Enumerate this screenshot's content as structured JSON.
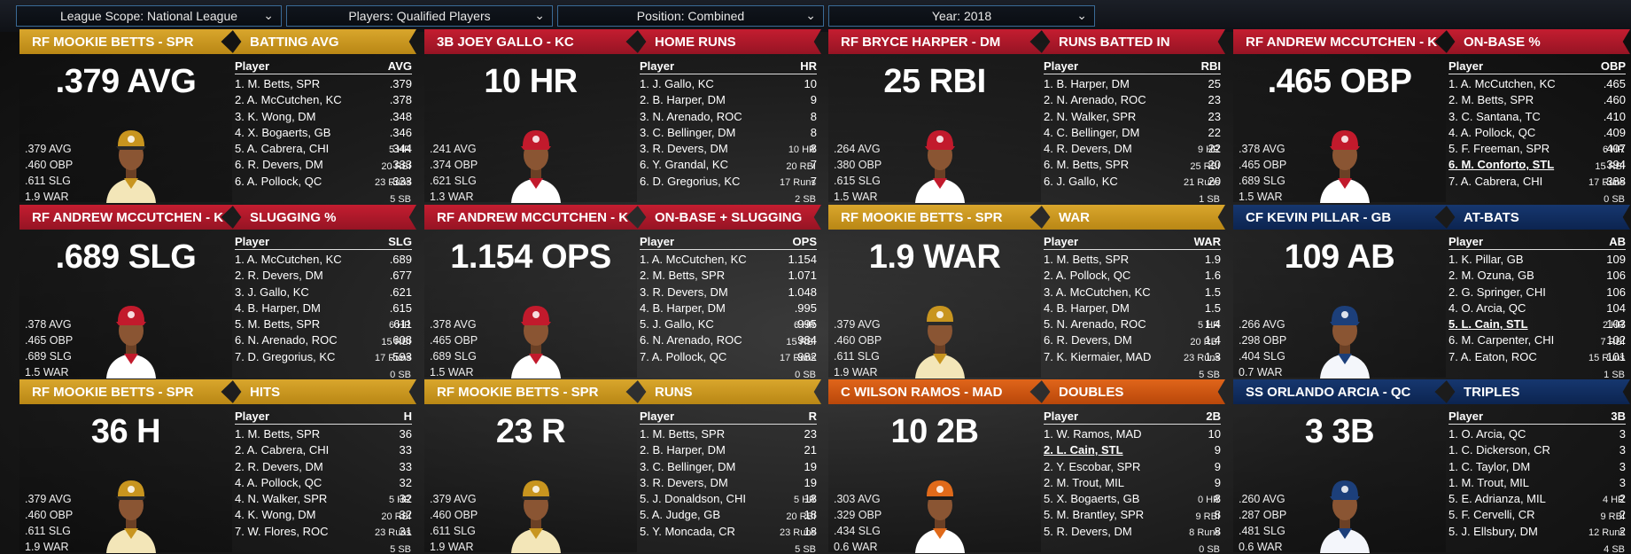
{
  "filters": [
    {
      "label": "League Scope: National League",
      "left": 0
    },
    {
      "label": "Players: Qualified Players",
      "left": 0
    },
    {
      "label": "Position: Combined",
      "left": 0
    },
    {
      "label": "Year: 2018",
      "left": 0
    }
  ],
  "colors": {
    "gold": "#c8951f",
    "red": "#b01a2a",
    "blue": "#0f2c5e",
    "orange": "#d4580f"
  },
  "cards": [
    {
      "player": "RF MOOKIE BETTS - SPR",
      "category": "BATTING AVG",
      "big": ".379 AVG",
      "color": "gold",
      "cap": "gold",
      "jersey": "gold",
      "stats": [
        ".379 AVG",
        ".460 OBP",
        ".611 SLG",
        "1.9 WAR"
      ],
      "side": [
        "5 HR",
        "20 RBI",
        "23 Runs",
        "5 SB"
      ],
      "col": "AVG",
      "rows": [
        [
          "1. M. Betts, SPR",
          ".379"
        ],
        [
          "2. A. McCutchen, KC",
          ".378"
        ],
        [
          "3. K. Wong, DM",
          ".348"
        ],
        [
          "4. X. Bogaerts, GB",
          ".346"
        ],
        [
          "5. A. Cabrera, CHI",
          ".344"
        ],
        [
          "6. R. Devers, DM",
          ".333"
        ],
        [
          "6. A. Pollock, QC",
          ".333"
        ]
      ],
      "hl": -1
    },
    {
      "player": "3B JOEY GALLO - KC",
      "category": "HOME RUNS",
      "big": "10 HR",
      "color": "red",
      "cap": "red",
      "jersey": "red",
      "stats": [
        ".241 AVG",
        ".374 OBP",
        ".621 SLG",
        "1.3 WAR"
      ],
      "side": [
        "10 HR",
        "20 RBI",
        "17 Runs",
        "2 SB"
      ],
      "col": "HR",
      "rows": [
        [
          "1. J. Gallo, KC",
          "10"
        ],
        [
          "2. B. Harper, DM",
          "9"
        ],
        [
          "3. N. Arenado, ROC",
          "8"
        ],
        [
          "3. C. Bellinger, DM",
          "8"
        ],
        [
          "3. R. Devers, DM",
          "8"
        ],
        [
          "6. Y. Grandal, KC",
          "7"
        ],
        [
          "6. D. Gregorius, KC",
          "7"
        ]
      ],
      "hl": -1
    },
    {
      "player": "RF BRYCE HARPER - DM",
      "category": "RUNS BATTED IN",
      "big": "25 RBI",
      "color": "red",
      "cap": "red",
      "jersey": "red",
      "stats": [
        ".264 AVG",
        ".380 OBP",
        ".615 SLG",
        "1.5 WAR"
      ],
      "side": [
        "9 HR",
        "25 RBI",
        "21 Runs",
        "1 SB"
      ],
      "col": "RBI",
      "rows": [
        [
          "1. B. Harper, DM",
          "25"
        ],
        [
          "2. N. Arenado, ROC",
          "23"
        ],
        [
          "2. N. Walker, SPR",
          "23"
        ],
        [
          "4. C. Bellinger, DM",
          "22"
        ],
        [
          "4. R. Devers, DM",
          "22"
        ],
        [
          "6. M. Betts, SPR",
          "20"
        ],
        [
          "6. J. Gallo, KC",
          "20"
        ]
      ],
      "hl": -1
    },
    {
      "player": "RF ANDREW MCCUTCHEN - KC",
      "category": "ON-BASE %",
      "big": ".465 OBP",
      "color": "red",
      "cap": "red",
      "jersey": "red",
      "stats": [
        ".378 AVG",
        ".465 OBP",
        ".689 SLG",
        "1.5 WAR"
      ],
      "side": [
        "6 HR",
        "15 RBI",
        "17 Runs",
        "0 SB"
      ],
      "col": "OBP",
      "rows": [
        [
          "1. A. McCutchen, KC",
          ".465"
        ],
        [
          "2. M. Betts, SPR",
          ".460"
        ],
        [
          "3. C. Santana, TC",
          ".410"
        ],
        [
          "4. A. Pollock, QC",
          ".409"
        ],
        [
          "5. F. Freeman, SPR",
          ".407"
        ],
        [
          "6. M. Conforto, STL",
          ".394"
        ],
        [
          "7. A. Cabrera, CHI",
          ".388"
        ]
      ],
      "hl": 5
    },
    {
      "player": "RF ANDREW MCCUTCHEN - KC",
      "category": "SLUGGING %",
      "big": ".689 SLG",
      "color": "red",
      "cap": "red",
      "jersey": "red",
      "stats": [
        ".378 AVG",
        ".465 OBP",
        ".689 SLG",
        "1.5 WAR"
      ],
      "side": [
        "6 HR",
        "15 RBI",
        "17 Runs",
        "0 SB"
      ],
      "col": "SLG",
      "rows": [
        [
          "1. A. McCutchen, KC",
          ".689"
        ],
        [
          "2. R. Devers, DM",
          ".677"
        ],
        [
          "3. J. Gallo, KC",
          ".621"
        ],
        [
          "4. B. Harper, DM",
          ".615"
        ],
        [
          "5. M. Betts, SPR",
          ".611"
        ],
        [
          "6. N. Arenado, ROC",
          ".608"
        ],
        [
          "7. D. Gregorius, KC",
          ".593"
        ]
      ],
      "hl": -1
    },
    {
      "player": "RF ANDREW MCCUTCHEN - KC",
      "category": "ON-BASE + SLUGGING",
      "big": "1.154 OPS",
      "color": "red",
      "cap": "red",
      "jersey": "red",
      "stats": [
        ".378 AVG",
        ".465 OBP",
        ".689 SLG",
        "1.5 WAR"
      ],
      "side": [
        "6 HR",
        "15 RBI",
        "17 Runs",
        "0 SB"
      ],
      "col": "OPS",
      "rows": [
        [
          "1. A. McCutchen, KC",
          "1.154"
        ],
        [
          "2. M. Betts, SPR",
          "1.071"
        ],
        [
          "3. R. Devers, DM",
          "1.048"
        ],
        [
          "4. B. Harper, DM",
          ".995"
        ],
        [
          "5. J. Gallo, KC",
          ".995"
        ],
        [
          "6. N. Arenado, ROC",
          ".984"
        ],
        [
          "7. A. Pollock, QC",
          ".982"
        ]
      ],
      "hl": -1
    },
    {
      "player": "RF MOOKIE BETTS - SPR",
      "category": "WAR",
      "big": "1.9 WAR",
      "color": "gold",
      "cap": "gold",
      "jersey": "gold",
      "stats": [
        ".379 AVG",
        ".460 OBP",
        ".611 SLG",
        "1.9 WAR"
      ],
      "side": [
        "5 HR",
        "20 RBI",
        "23 Runs",
        "5 SB"
      ],
      "col": "WAR",
      "rows": [
        [
          "1. M. Betts, SPR",
          "1.9"
        ],
        [
          "2. A. Pollock, QC",
          "1.6"
        ],
        [
          "3. A. McCutchen, KC",
          "1.5"
        ],
        [
          "4. B. Harper, DM",
          "1.5"
        ],
        [
          "5. N. Arenado, ROC",
          "1.4"
        ],
        [
          "6. R. Devers, DM",
          "1.4"
        ],
        [
          "7. K. Kiermaier, MAD",
          "1.3"
        ]
      ],
      "hl": -1
    },
    {
      "player": "CF KEVIN PILLAR - GB",
      "category": "AT-BATS",
      "big": "109 AB",
      "color": "blue",
      "cap": "blue",
      "jersey": "blue",
      "stats": [
        ".266 AVG",
        ".298 OBP",
        ".404 SLG",
        "0.7 WAR"
      ],
      "side": [
        "2 HR",
        "7 RBI",
        "15 Runs",
        "1 SB"
      ],
      "col": "AB",
      "rows": [
        [
          "1. K. Pillar, GB",
          "109"
        ],
        [
          "2. M. Ozuna, GB",
          "106"
        ],
        [
          "2. G. Springer, CHI",
          "106"
        ],
        [
          "4. O. Arcia, QC",
          "104"
        ],
        [
          "5. L. Cain, STL",
          "103"
        ],
        [
          "6. M. Carpenter, CHI",
          "102"
        ],
        [
          "7. A. Eaton, ROC",
          "101"
        ]
      ],
      "hl": 4
    },
    {
      "player": "RF MOOKIE BETTS - SPR",
      "category": "HITS",
      "big": "36 H",
      "color": "gold",
      "cap": "gold",
      "jersey": "gold",
      "stats": [
        ".379 AVG",
        ".460 OBP",
        ".611 SLG",
        "1.9 WAR"
      ],
      "side": [
        "5 HR",
        "20 RBI",
        "23 Runs",
        "5 SB"
      ],
      "col": "H",
      "rows": [
        [
          "1. M. Betts, SPR",
          "36"
        ],
        [
          "2. A. Cabrera, CHI",
          "33"
        ],
        [
          "2. R. Devers, DM",
          "33"
        ],
        [
          "4. A. Pollock, QC",
          "32"
        ],
        [
          "4. N. Walker, SPR",
          "32"
        ],
        [
          "4. K. Wong, DM",
          "32"
        ],
        [
          "7. W. Flores, ROC",
          "31"
        ]
      ],
      "hl": -1
    },
    {
      "player": "RF MOOKIE BETTS - SPR",
      "category": "RUNS",
      "big": "23 R",
      "color": "gold",
      "cap": "gold",
      "jersey": "gold",
      "stats": [
        ".379 AVG",
        ".460 OBP",
        ".611 SLG",
        "1.9 WAR"
      ],
      "side": [
        "5 HR",
        "20 RBI",
        "23 Runs",
        "5 SB"
      ],
      "col": "R",
      "rows": [
        [
          "1. M. Betts, SPR",
          "23"
        ],
        [
          "2. B. Harper, DM",
          "21"
        ],
        [
          "3. C. Bellinger, DM",
          "19"
        ],
        [
          "3. R. Devers, DM",
          "19"
        ],
        [
          "5. J. Donaldson, CHI",
          "18"
        ],
        [
          "5. A. Judge, GB",
          "18"
        ],
        [
          "5. Y. Moncada, CR",
          "18"
        ]
      ],
      "hl": -1
    },
    {
      "player": "C WILSON RAMOS - MAD",
      "category": "DOUBLES",
      "big": "10 2B",
      "color": "orange",
      "cap": "orange",
      "jersey": "orange",
      "stats": [
        ".303 AVG",
        ".329 OBP",
        ".434 SLG",
        "0.6 WAR"
      ],
      "side": [
        "0 HR",
        "9 RBI",
        "8 Runs",
        "0 SB"
      ],
      "col": "2B",
      "rows": [
        [
          "1. W. Ramos, MAD",
          "10"
        ],
        [
          "2. L. Cain, STL",
          "9"
        ],
        [
          "2. Y. Escobar, SPR",
          "9"
        ],
        [
          "2. M. Trout, MIL",
          "9"
        ],
        [
          "5. X. Bogaerts, GB",
          "8"
        ],
        [
          "5. M. Brantley, SPR",
          "8"
        ],
        [
          "5. R. Devers, DM",
          "8"
        ]
      ],
      "hl": 1
    },
    {
      "player": "SS ORLANDO ARCIA - QC",
      "category": "TRIPLES",
      "big": "3 3B",
      "color": "blue",
      "cap": "blue",
      "jersey": "blue",
      "stats": [
        ".260 AVG",
        ".287 OBP",
        ".481 SLG",
        "0.6 WAR"
      ],
      "side": [
        "4 HR",
        "9 RBI",
        "12 Runs",
        "4 SB"
      ],
      "col": "3B",
      "rows": [
        [
          "1. O. Arcia, QC",
          "3"
        ],
        [
          "1. C. Dickerson, CR",
          "3"
        ],
        [
          "1. C. Taylor, DM",
          "3"
        ],
        [
          "1. M. Trout, MIL",
          "3"
        ],
        [
          "5. E. Adrianza, MIL",
          "2"
        ],
        [
          "5. F. Cervelli, CR",
          "2"
        ],
        [
          "5. J. Ellsbury, DM",
          "2"
        ]
      ],
      "hl": -1
    }
  ],
  "labels": {
    "player_col": "Player"
  }
}
